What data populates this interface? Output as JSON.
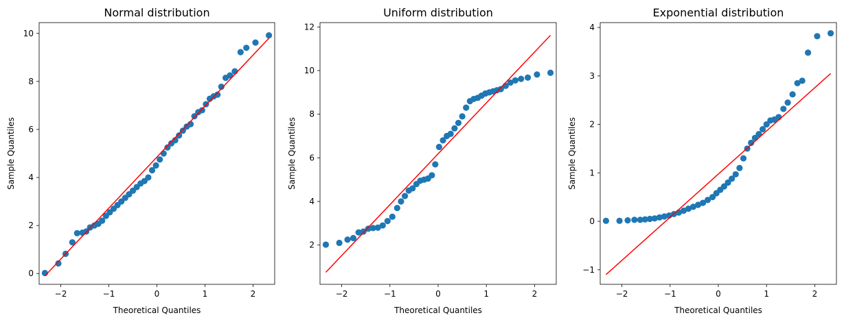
{
  "chart_data": [
    {
      "type": "scatter",
      "title": "Normal distribution",
      "xlabel": "Theoretical Quantiles",
      "ylabel": "Sample Quantiles",
      "xlim": [
        -2.45,
        2.45
      ],
      "ylim": [
        -0.45,
        10.45
      ],
      "xticks": [
        -2,
        -1,
        0,
        1,
        2
      ],
      "yticks": [
        0,
        2,
        4,
        6,
        8,
        10
      ],
      "grid": false,
      "colors": {
        "points": "#1f77b4",
        "line": "#ff0000"
      },
      "fit_line": {
        "x": [
          -2.33,
          2.33
        ],
        "y": [
          -0.1,
          9.8
        ]
      },
      "points": [
        [
          -2.33,
          0.02
        ],
        [
          -2.05,
          0.42
        ],
        [
          -1.9,
          0.82
        ],
        [
          -1.76,
          1.3
        ],
        [
          -1.66,
          1.68
        ],
        [
          -1.55,
          1.7
        ],
        [
          -1.47,
          1.75
        ],
        [
          -1.39,
          1.92
        ],
        [
          -1.3,
          2.0
        ],
        [
          -1.22,
          2.07
        ],
        [
          -1.14,
          2.2
        ],
        [
          -1.06,
          2.4
        ],
        [
          -0.98,
          2.55
        ],
        [
          -0.9,
          2.7
        ],
        [
          -0.82,
          2.85
        ],
        [
          -0.74,
          3.0
        ],
        [
          -0.66,
          3.15
        ],
        [
          -0.58,
          3.3
        ],
        [
          -0.5,
          3.45
        ],
        [
          -0.42,
          3.6
        ],
        [
          -0.34,
          3.75
        ],
        [
          -0.26,
          3.85
        ],
        [
          -0.18,
          4.0
        ],
        [
          -0.1,
          4.3
        ],
        [
          -0.02,
          4.5
        ],
        [
          0.06,
          4.75
        ],
        [
          0.14,
          5.0
        ],
        [
          0.22,
          5.25
        ],
        [
          0.3,
          5.42
        ],
        [
          0.38,
          5.55
        ],
        [
          0.46,
          5.75
        ],
        [
          0.54,
          5.95
        ],
        [
          0.62,
          6.12
        ],
        [
          0.7,
          6.22
        ],
        [
          0.78,
          6.55
        ],
        [
          0.86,
          6.72
        ],
        [
          0.94,
          6.8
        ],
        [
          1.02,
          7.05
        ],
        [
          1.1,
          7.28
        ],
        [
          1.18,
          7.38
        ],
        [
          1.26,
          7.45
        ],
        [
          1.34,
          7.78
        ],
        [
          1.43,
          8.15
        ],
        [
          1.52,
          8.25
        ],
        [
          1.62,
          8.42
        ],
        [
          1.74,
          9.22
        ],
        [
          1.86,
          9.4
        ],
        [
          2.05,
          9.62
        ],
        [
          2.33,
          9.92
        ]
      ]
    },
    {
      "type": "scatter",
      "title": "Uniform distribution",
      "xlabel": "Theoretical Quantiles",
      "ylabel": "Sample Quantiles",
      "xlim": [
        -2.45,
        2.45
      ],
      "ylim": [
        0.2,
        12.2
      ],
      "xticks": [
        -2,
        -1,
        0,
        1,
        2
      ],
      "yticks": [
        2,
        4,
        6,
        8,
        10,
        12
      ],
      "grid": false,
      "colors": {
        "points": "#1f77b4",
        "line": "#ff0000"
      },
      "fit_line": {
        "x": [
          -2.33,
          2.33
        ],
        "y": [
          0.75,
          11.62
        ]
      },
      "points": [
        [
          -2.33,
          2.02
        ],
        [
          -2.05,
          2.1
        ],
        [
          -1.88,
          2.25
        ],
        [
          -1.76,
          2.32
        ],
        [
          -1.65,
          2.58
        ],
        [
          -1.55,
          2.62
        ],
        [
          -1.45,
          2.75
        ],
        [
          -1.35,
          2.78
        ],
        [
          -1.25,
          2.8
        ],
        [
          -1.15,
          2.9
        ],
        [
          -1.05,
          3.1
        ],
        [
          -0.95,
          3.3
        ],
        [
          -0.85,
          3.7
        ],
        [
          -0.77,
          4.0
        ],
        [
          -0.69,
          4.25
        ],
        [
          -0.61,
          4.5
        ],
        [
          -0.53,
          4.6
        ],
        [
          -0.45,
          4.8
        ],
        [
          -0.37,
          4.95
        ],
        [
          -0.29,
          5.0
        ],
        [
          -0.21,
          5.05
        ],
        [
          -0.13,
          5.2
        ],
        [
          -0.06,
          5.7
        ],
        [
          0.02,
          6.5
        ],
        [
          0.1,
          6.8
        ],
        [
          0.18,
          7.0
        ],
        [
          0.26,
          7.1
        ],
        [
          0.34,
          7.35
        ],
        [
          0.42,
          7.6
        ],
        [
          0.5,
          7.9
        ],
        [
          0.58,
          8.3
        ],
        [
          0.66,
          8.6
        ],
        [
          0.74,
          8.7
        ],
        [
          0.82,
          8.75
        ],
        [
          0.9,
          8.85
        ],
        [
          0.98,
          8.95
        ],
        [
          1.06,
          9.0
        ],
        [
          1.14,
          9.05
        ],
        [
          1.22,
          9.1
        ],
        [
          1.3,
          9.15
        ],
        [
          1.4,
          9.3
        ],
        [
          1.5,
          9.45
        ],
        [
          1.6,
          9.55
        ],
        [
          1.72,
          9.62
        ],
        [
          1.86,
          9.68
        ],
        [
          2.05,
          9.82
        ],
        [
          2.33,
          9.9
        ]
      ]
    },
    {
      "type": "scatter",
      "title": "Exponential distribution",
      "xlabel": "Theoretical Quantiles",
      "ylabel": "Sample Quantiles",
      "xlim": [
        -2.45,
        2.45
      ],
      "ylim": [
        -1.3,
        4.1
      ],
      "xticks": [
        -2,
        -1,
        0,
        1,
        2
      ],
      "yticks": [
        -1,
        0,
        1,
        2,
        3,
        4
      ],
      "grid": false,
      "colors": {
        "points": "#1f77b4",
        "line": "#ff0000"
      },
      "fit_line": {
        "x": [
          -2.33,
          2.33
        ],
        "y": [
          -1.1,
          3.05
        ]
      },
      "points": [
        [
          -2.33,
          0.01
        ],
        [
          -2.05,
          0.01
        ],
        [
          -1.88,
          0.02
        ],
        [
          -1.74,
          0.03
        ],
        [
          -1.62,
          0.03
        ],
        [
          -1.52,
          0.04
        ],
        [
          -1.42,
          0.05
        ],
        [
          -1.32,
          0.06
        ],
        [
          -1.22,
          0.08
        ],
        [
          -1.12,
          0.1
        ],
        [
          -1.02,
          0.12
        ],
        [
          -0.92,
          0.15
        ],
        [
          -0.82,
          0.18
        ],
        [
          -0.72,
          0.22
        ],
        [
          -0.62,
          0.26
        ],
        [
          -0.52,
          0.3
        ],
        [
          -0.42,
          0.34
        ],
        [
          -0.32,
          0.38
        ],
        [
          -0.22,
          0.44
        ],
        [
          -0.12,
          0.5
        ],
        [
          -0.04,
          0.58
        ],
        [
          0.04,
          0.65
        ],
        [
          0.12,
          0.72
        ],
        [
          0.2,
          0.8
        ],
        [
          0.28,
          0.88
        ],
        [
          0.36,
          0.97
        ],
        [
          0.44,
          1.1
        ],
        [
          0.52,
          1.3
        ],
        [
          0.6,
          1.5
        ],
        [
          0.68,
          1.62
        ],
        [
          0.76,
          1.72
        ],
        [
          0.84,
          1.8
        ],
        [
          0.92,
          1.9
        ],
        [
          1.0,
          2.0
        ],
        [
          1.08,
          2.08
        ],
        [
          1.16,
          2.1
        ],
        [
          1.25,
          2.15
        ],
        [
          1.35,
          2.32
        ],
        [
          1.44,
          2.45
        ],
        [
          1.54,
          2.62
        ],
        [
          1.64,
          2.85
        ],
        [
          1.74,
          2.9
        ],
        [
          1.86,
          3.48
        ],
        [
          2.05,
          3.82
        ],
        [
          2.33,
          3.88
        ]
      ]
    }
  ]
}
